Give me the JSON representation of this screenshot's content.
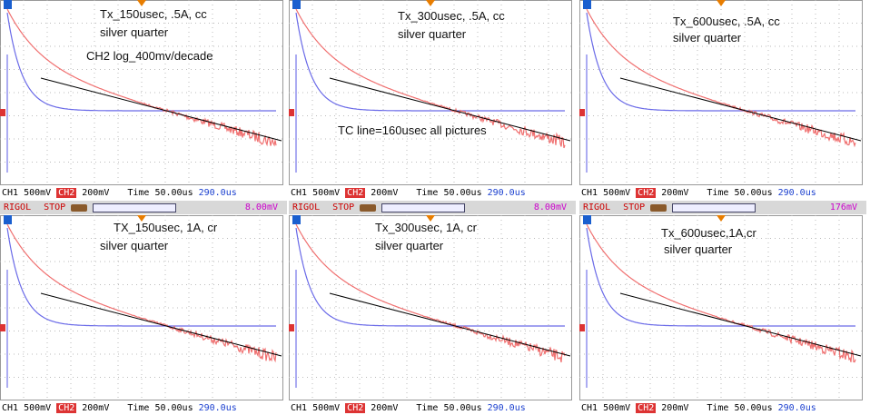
{
  "panels": [
    {
      "notes": [
        "Tx_150usec, .5A, cc",
        "silver quarter",
        "CH2 log_400mv/decade"
      ],
      "status": {
        "ch1": "CH1",
        "ch1_scale": "500mV",
        "ch2": "CH2",
        "ch2_scale": "200mV",
        "time": "Time 50.00us",
        "trigger": "290.0us"
      }
    },
    {
      "notes": [
        "Tx_300usec, .5A, cc",
        "silver quarter",
        "TC line=160usec all pictures"
      ],
      "status": {
        "ch1": "CH1",
        "ch1_scale": "500mV",
        "ch2": "CH2",
        "ch2_scale": "200mV",
        "time": "Time 50.00us",
        "trigger": "290.0us"
      }
    },
    {
      "notes": [
        "Tx_600usec, .5A, cc",
        "silver quarter"
      ],
      "status": {
        "ch1": "CH1",
        "ch1_scale": "500mV",
        "ch2": "CH2",
        "ch2_scale": "200mV",
        "time": "Time 50.00us",
        "trigger": "290.0us"
      }
    },
    {
      "header": {
        "brand": "RIGOL",
        "state": "STOP",
        "trigger_level": "8.00mV"
      },
      "notes": [
        "TX_150usec, 1A, cr",
        "silver quarter"
      ],
      "status": {
        "ch1": "CH1",
        "ch1_scale": "500mV",
        "ch2": "CH2",
        "ch2_scale": "200mV",
        "time": "Time 50.00us",
        "trigger": "290.0us"
      }
    },
    {
      "header": {
        "brand": "RIGOL",
        "state": "STOP",
        "trigger_level": "8.00mV"
      },
      "notes": [
        "Tx_300usec, 1A, cr",
        "silver quarter"
      ],
      "status": {
        "ch1": "CH1",
        "ch1_scale": "500mV",
        "ch2": "CH2",
        "ch2_scale": "200mV",
        "time": "Time 50.00us",
        "trigger": "290.0us"
      }
    },
    {
      "header": {
        "brand": "RIGOL",
        "state": "STOP",
        "trigger_level": "176mV"
      },
      "notes": [
        "Tx_600usec,1A,cr",
        "silver quarter"
      ],
      "status": {
        "ch1": "CH1",
        "ch1_scale": "500mV",
        "ch2": "CH2",
        "ch2_scale": "200mV",
        "time": "Time 50.00us",
        "trigger": "290.0us"
      }
    }
  ]
}
